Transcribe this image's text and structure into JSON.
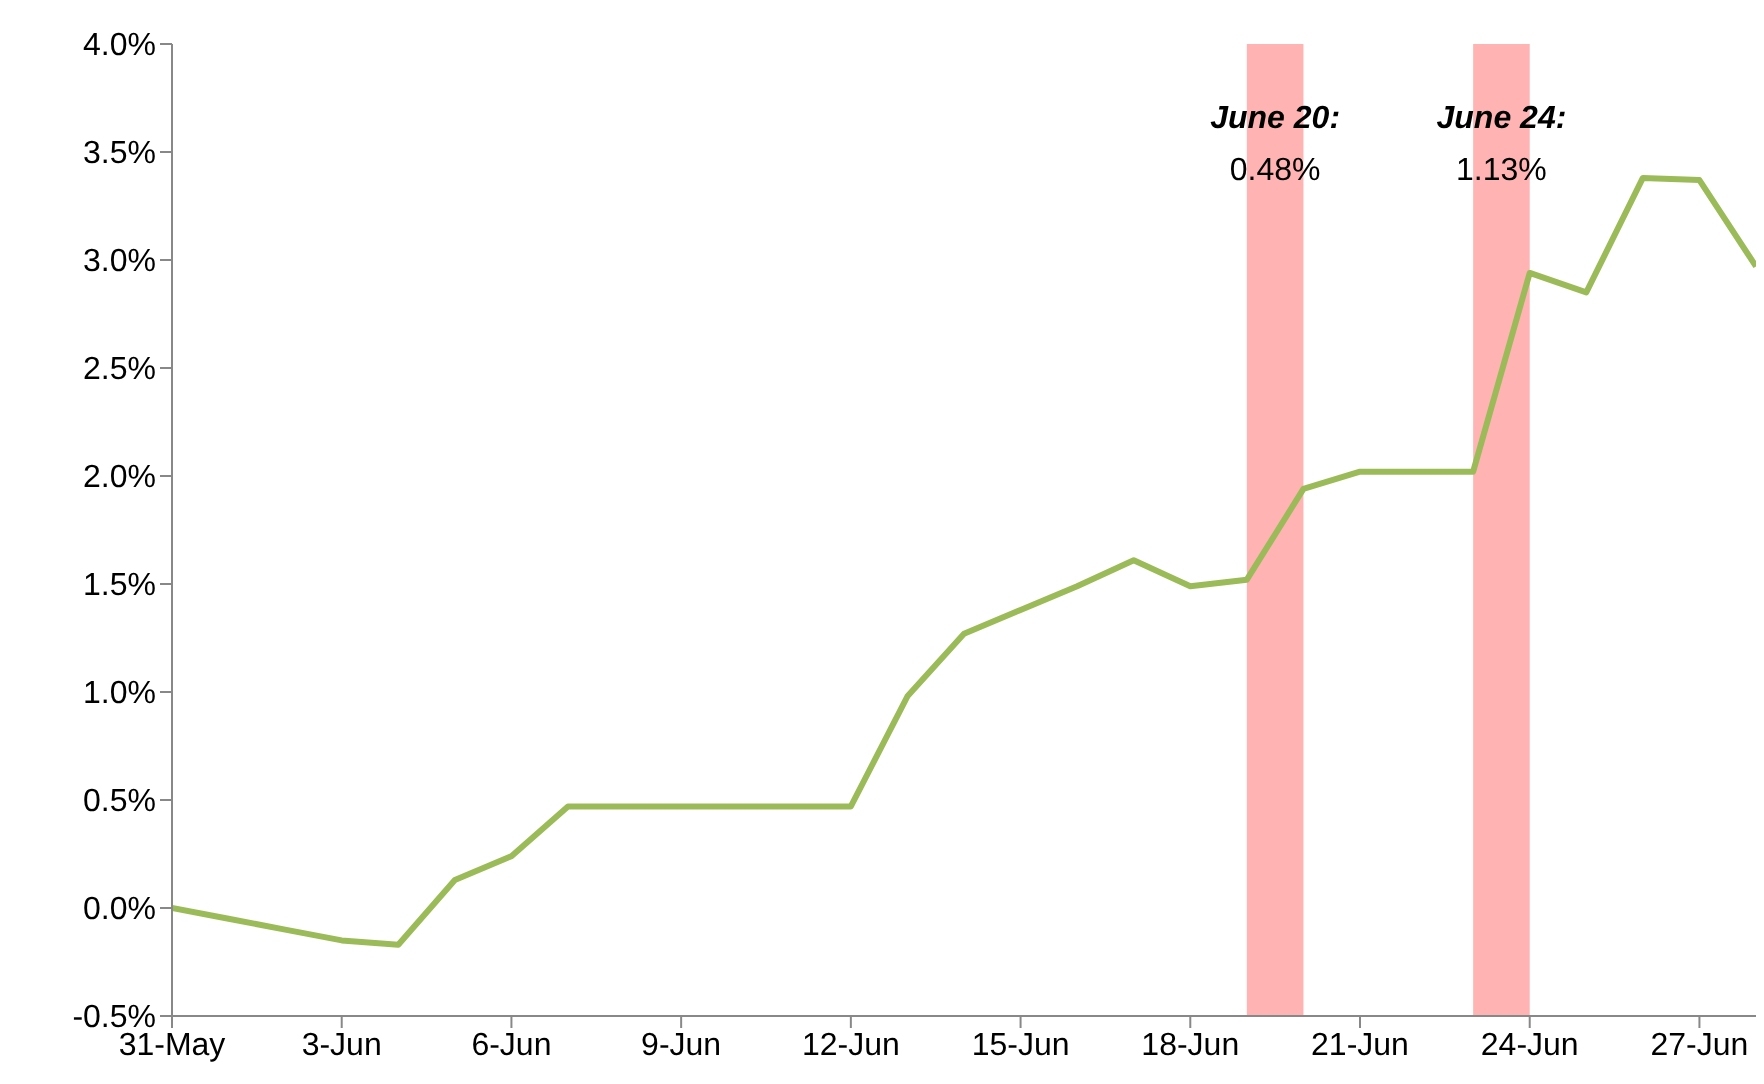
{
  "chart_data": {
    "type": "line",
    "x": [
      "--05-31",
      "--06-01",
      "--06-02",
      "--06-03",
      "--06-04",
      "--06-05",
      "--06-06",
      "--06-07",
      "--06-08",
      "--06-09",
      "--06-10",
      "--06-11",
      "--06-12",
      "--06-13",
      "--06-14",
      "--06-15",
      "--06-16",
      "--06-17",
      "--06-18",
      "--06-19",
      "--06-20",
      "--06-21",
      "--06-22",
      "--06-23",
      "--06-24",
      "--06-25",
      "--06-26",
      "--06-27",
      "--06-28"
    ],
    "series": [
      {
        "color": "#9bbb59",
        "values": [
          0.0,
          -0.05,
          -0.1,
          -0.15,
          -0.17,
          0.13,
          0.24,
          0.47,
          0.47,
          0.47,
          0.47,
          0.47,
          0.47,
          0.98,
          1.27,
          1.38,
          1.49,
          1.61,
          1.49,
          1.52,
          1.94,
          2.02,
          2.02,
          2.02,
          2.94,
          2.85,
          3.38,
          3.37,
          2.97
        ]
      }
    ],
    "xlim": [
      "--05-31",
      "--06-28"
    ],
    "xticks": [
      {
        "value": "--05-31",
        "label": "31-May"
      },
      {
        "value": "--06-03",
        "label": "3-Jun"
      },
      {
        "value": "--06-06",
        "label": "6-Jun"
      },
      {
        "value": "--06-09",
        "label": "9-Jun"
      },
      {
        "value": "--06-12",
        "label": "12-Jun"
      },
      {
        "value": "--06-15",
        "label": "15-Jun"
      },
      {
        "value": "--06-18",
        "label": "18-Jun"
      },
      {
        "value": "--06-21",
        "label": "21-Jun"
      },
      {
        "value": "--06-24",
        "label": "24-Jun"
      },
      {
        "value": "--06-27",
        "label": "27-Jun"
      }
    ],
    "ylim": [
      -0.5,
      4.0
    ],
    "yticks": [
      {
        "value": -0.5,
        "label": "-0.5%"
      },
      {
        "value": 0,
        "label": "0.0%"
      },
      {
        "value": 0.5,
        "label": "0.5%"
      },
      {
        "value": 1,
        "label": "1.0%"
      },
      {
        "value": 1.5,
        "label": "1.5%"
      },
      {
        "value": 2,
        "label": "2.0%"
      },
      {
        "value": 2.5,
        "label": "2.5%"
      },
      {
        "value": 3,
        "label": "3.0%"
      },
      {
        "value": 3.5,
        "label": "3.5%"
      },
      {
        "value": 4,
        "label": "4.0%"
      }
    ],
    "bands": [
      {
        "axis": "x",
        "from": "--06-19",
        "to": "--06-20",
        "label": "June 20:\n0.48%",
        "color": "#ff9999"
      },
      {
        "axis": "x",
        "from": "--06-23",
        "to": "--06-24",
        "label": "June 24:\n1.13%",
        "color": "#ff9999"
      }
    ],
    "grid": false,
    "legend": false,
    "marker": "none",
    "line_style": "solid"
  }
}
